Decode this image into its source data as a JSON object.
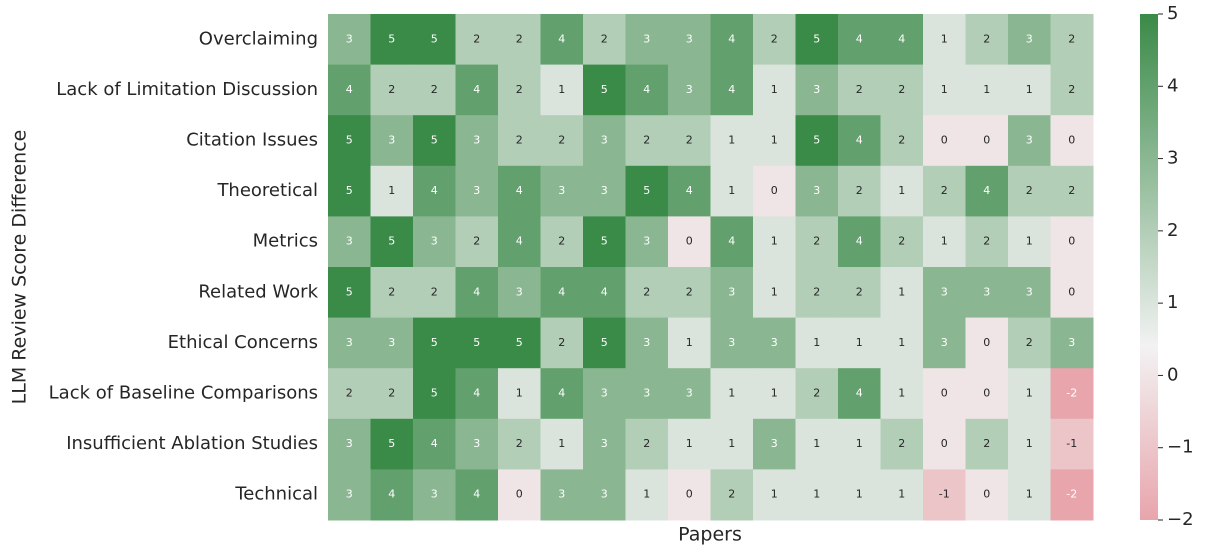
{
  "chart_data": {
    "type": "heatmap",
    "xlabel": "Papers",
    "ylabel": "LLM Review Score Difference",
    "rows": [
      "Overclaiming",
      "Lack of Limitation Discussion",
      "Citation Issues",
      "Theoretical",
      "Metrics",
      "Related Work",
      "Ethical Concerns",
      "Lack of Baseline Comparisons",
      "Insufficient Ablation Studies",
      "Technical"
    ],
    "values": [
      [
        3,
        5,
        5,
        2,
        2,
        4,
        2,
        3,
        3,
        4,
        2,
        5,
        4,
        4,
        1,
        2,
        3,
        2
      ],
      [
        4,
        2,
        2,
        4,
        2,
        1,
        5,
        4,
        3,
        4,
        1,
        3,
        2,
        2,
        1,
        1,
        1,
        2
      ],
      [
        5,
        3,
        5,
        3,
        2,
        2,
        3,
        2,
        2,
        1,
        1,
        5,
        4,
        2,
        0,
        0,
        3,
        0
      ],
      [
        5,
        1,
        4,
        3,
        4,
        3,
        3,
        5,
        4,
        1,
        0,
        3,
        2,
        1,
        2,
        4,
        2,
        2
      ],
      [
        3,
        5,
        3,
        2,
        4,
        2,
        5,
        3,
        0,
        4,
        1,
        2,
        4,
        2,
        1,
        2,
        1,
        0
      ],
      [
        5,
        2,
        2,
        4,
        3,
        4,
        4,
        2,
        2,
        3,
        1,
        2,
        2,
        1,
        3,
        3,
        3,
        0
      ],
      [
        3,
        3,
        5,
        5,
        5,
        2,
        5,
        3,
        1,
        3,
        3,
        1,
        1,
        1,
        3,
        0,
        2,
        3
      ],
      [
        2,
        2,
        5,
        4,
        1,
        4,
        3,
        3,
        3,
        1,
        1,
        2,
        4,
        1,
        0,
        0,
        1,
        -2
      ],
      [
        3,
        5,
        4,
        3,
        2,
        1,
        3,
        2,
        1,
        1,
        3,
        1,
        1,
        2,
        0,
        2,
        1,
        -1
      ],
      [
        3,
        4,
        3,
        4,
        0,
        3,
        3,
        1,
        0,
        2,
        1,
        1,
        1,
        1,
        -1,
        0,
        1,
        -2
      ]
    ],
    "colorbar_lim": [
      -2,
      5
    ],
    "colorbar_ticks": [
      {
        "value": -2,
        "label": "−2"
      },
      {
        "value": -1,
        "label": "−1"
      },
      0,
      1,
      2,
      3,
      4,
      5
    ],
    "colormap": [
      {
        "value": -2,
        "color": "#e8a5ac"
      },
      {
        "value": 0.4,
        "color": "#f2f2f2"
      },
      {
        "value": 5,
        "color": "#3a8a48"
      }
    ]
  }
}
